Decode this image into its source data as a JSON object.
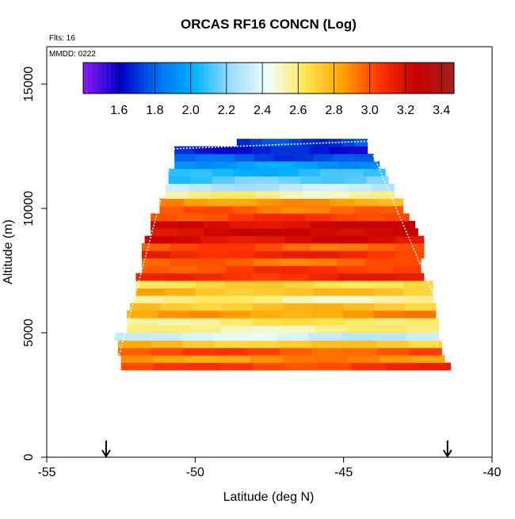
{
  "chart_data": {
    "type": "heatmap",
    "title": "ORCAS RF16 CONCN (Log)",
    "annotations": {
      "flights": "Flts: 16",
      "date": "MMDD: 0222"
    },
    "xlabel": "Latitude (deg N)",
    "ylabel": "Altitude (m)",
    "xlim": [
      -55,
      -40
    ],
    "ylim": [
      0,
      16500
    ],
    "x_ticks": [
      -55,
      -50,
      -45,
      -40
    ],
    "y_ticks": [
      0,
      5000,
      10000,
      15000
    ],
    "colorbar": {
      "range": [
        1.4,
        3.47
      ],
      "ticks": [
        "1.6",
        "1.8",
        "2.0",
        "2.2",
        "2.4",
        "2.6",
        "2.8",
        "3.0",
        "3.2",
        "3.4"
      ],
      "colors": [
        "#8a1df0",
        "#0000c8",
        "#006ef0",
        "#00b4ff",
        "#a0dcff",
        "#f0ffff",
        "#ffe650",
        "#ffa000",
        "#ff3200",
        "#c80000",
        "#a02020"
      ]
    },
    "markers": [
      {
        "x": -53,
        "label": "arrow"
      },
      {
        "x": -41.5,
        "label": "arrow"
      }
    ],
    "profile": {
      "lower_alt": 3500,
      "upper_alt": 12700,
      "left_bottom_lat": -52.7,
      "left_top_lat": -50.7,
      "right_bottom_lat": -41.6,
      "right_top_lat": -44.2
    },
    "bands": [
      {
        "alt": 3650,
        "value": 3.05,
        "lat_min": -52.5,
        "lat_max": -41.4
      },
      {
        "alt": 3950,
        "value": 2.88,
        "lat_min": -52.5,
        "lat_max": -41.6
      },
      {
        "alt": 4250,
        "value": 3.0,
        "lat_min": -52.6,
        "lat_max": -41.7
      },
      {
        "alt": 4550,
        "value": 2.72,
        "lat_min": -52.6,
        "lat_max": -41.7
      },
      {
        "alt": 4850,
        "value": 2.35,
        "lat_min": -52.7,
        "lat_max": -41.8
      },
      {
        "alt": 5150,
        "value": 2.55,
        "lat_min": -52.3,
        "lat_max": -41.8
      },
      {
        "alt": 5450,
        "value": 2.62,
        "lat_min": -52.3,
        "lat_max": -41.8
      },
      {
        "alt": 5750,
        "value": 2.85,
        "lat_min": -52.3,
        "lat_max": -41.9
      },
      {
        "alt": 6050,
        "value": 2.75,
        "lat_min": -52.2,
        "lat_max": -41.9
      },
      {
        "alt": 6350,
        "value": 2.55,
        "lat_min": -52.1,
        "lat_max": -42.0
      },
      {
        "alt": 6650,
        "value": 2.75,
        "lat_min": -52.0,
        "lat_max": -42.0
      },
      {
        "alt": 6950,
        "value": 2.68,
        "lat_min": -52.0,
        "lat_max": -42.0
      },
      {
        "alt": 7250,
        "value": 3.1,
        "lat_min": -52.0,
        "lat_max": -42.3
      },
      {
        "alt": 7550,
        "value": 3.05,
        "lat_min": -51.8,
        "lat_max": -42.4
      },
      {
        "alt": 7850,
        "value": 2.95,
        "lat_min": -51.8,
        "lat_max": -42.4
      },
      {
        "alt": 8150,
        "value": 3.1,
        "lat_min": -51.8,
        "lat_max": -42.3
      },
      {
        "alt": 8450,
        "value": 2.98,
        "lat_min": -51.8,
        "lat_max": -42.3
      },
      {
        "alt": 8750,
        "value": 3.2,
        "lat_min": -51.7,
        "lat_max": -42.3
      },
      {
        "alt": 9050,
        "value": 3.25,
        "lat_min": -51.5,
        "lat_max": -42.5
      },
      {
        "alt": 9350,
        "value": 3.22,
        "lat_min": -51.5,
        "lat_max": -42.6
      },
      {
        "alt": 9650,
        "value": 3.05,
        "lat_min": -51.5,
        "lat_max": -42.8
      },
      {
        "alt": 9950,
        "value": 2.95,
        "lat_min": -51.2,
        "lat_max": -43.0
      },
      {
        "alt": 10250,
        "value": 2.85,
        "lat_min": -51.2,
        "lat_max": -43.0
      },
      {
        "alt": 10550,
        "value": 2.55,
        "lat_min": -51.0,
        "lat_max": -43.3
      },
      {
        "alt": 10850,
        "value": 2.3,
        "lat_min": -51.0,
        "lat_max": -43.3
      },
      {
        "alt": 11150,
        "value": 2.15,
        "lat_min": -50.9,
        "lat_max": -43.5
      },
      {
        "alt": 11450,
        "value": 2.05,
        "lat_min": -50.9,
        "lat_max": -43.6
      },
      {
        "alt": 11750,
        "value": 1.95,
        "lat_min": -50.7,
        "lat_max": -43.8
      },
      {
        "alt": 12050,
        "value": 1.75,
        "lat_min": -50.7,
        "lat_max": -44.0
      },
      {
        "alt": 12350,
        "value": 1.65,
        "lat_min": -50.7,
        "lat_max": -44.2
      },
      {
        "alt": 12650,
        "value": 1.72,
        "lat_min": -48.6,
        "lat_max": -44.2
      }
    ]
  }
}
